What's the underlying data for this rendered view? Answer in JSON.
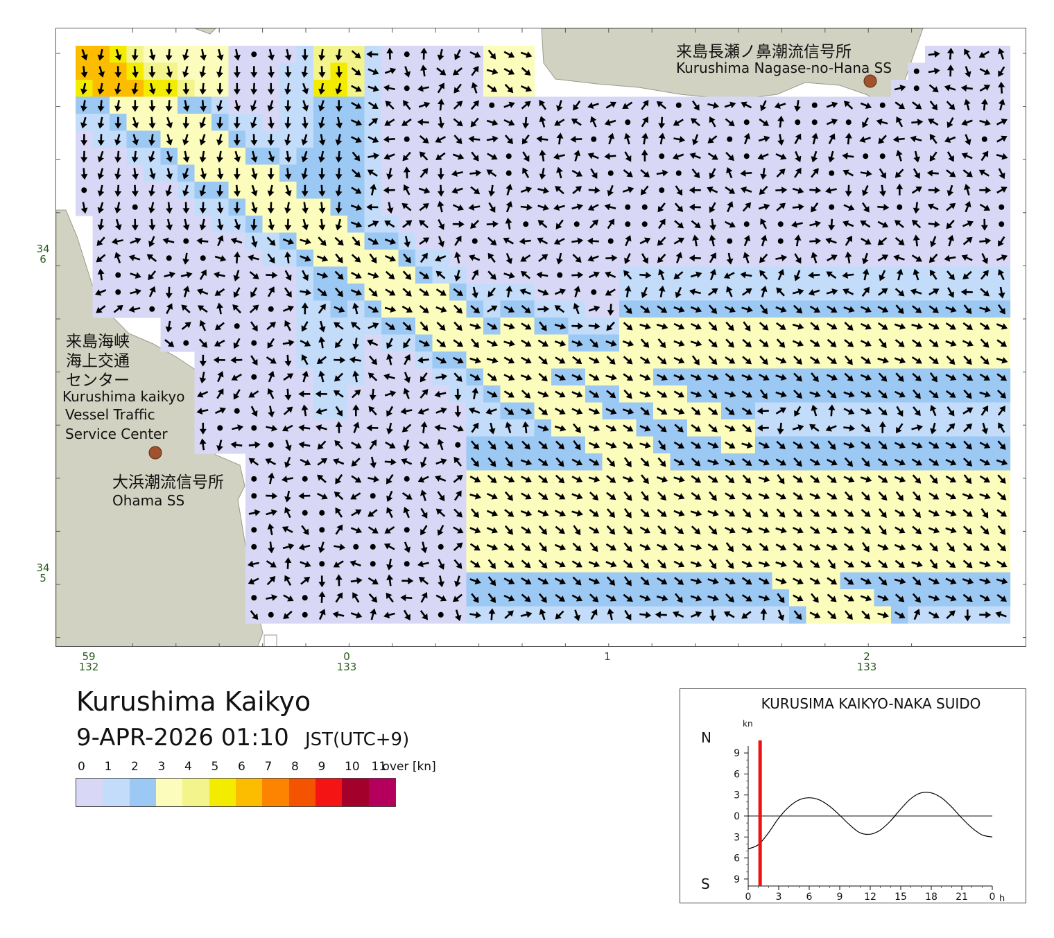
{
  "title": "Kurushima Kaikyo",
  "datetime": "9-APR-2026 01:10",
  "timezone": "JST(UTC+9)",
  "legend": {
    "ticks": [
      "0",
      "1",
      "2",
      "3",
      "4",
      "5",
      "6",
      "7",
      "8",
      "9",
      "10",
      "11"
    ],
    "over_label": "over [kn]",
    "colors": [
      "#d8d8f6",
      "#c2dcfa",
      "#9cc8f4",
      "#fcfcbc",
      "#f4f48c",
      "#f4ec00",
      "#fcbc00",
      "#fc8400",
      "#f45400",
      "#f41414",
      "#a4002c",
      "#b4005c"
    ]
  },
  "places": {
    "nagase_jp": "来島長瀬ノ鼻潮流信号所",
    "nagase_en": "Kurushima Nagase-no-Hana SS",
    "vts_jp_1": "来島海峡",
    "vts_jp_2": "海上交通",
    "vts_jp_3": "センター",
    "vts_en_1": "Kurushima kaikyo",
    "vts_en_2": "Vessel Traffic",
    "vts_en_3": "Service Center",
    "ohama_jp": "大浜潮流信号所",
    "ohama_en": "Ohama SS"
  },
  "coords": {
    "lat_6_deg": "34",
    "lat_6_min": "6",
    "lat_5_deg": "34",
    "lat_5_min": "5",
    "lon_59_min": "59",
    "lon_59_deg": "132",
    "lon_0_min": "0",
    "lon_0_deg": "133",
    "lon_1_min": "1",
    "lon_2_min": "2",
    "lon_2_deg": "133"
  },
  "colors": {
    "land": "#d2d2c2",
    "station": "#a0522d",
    "arrow": "#000000",
    "tide_line": "#000000",
    "time_marker": "#ee1111"
  },
  "tide_chart": {
    "title": "KURUSIMA KAIKYO-NAKA SUIDO",
    "unit": "kn",
    "north_label": "N",
    "south_label": "S",
    "y_tick_labels": [
      "9",
      "6",
      "3",
      "0",
      "3",
      "6",
      "9"
    ],
    "x_tick_labels": [
      "0",
      "3",
      "6",
      "9",
      "12",
      "15",
      "18",
      "21",
      "0"
    ],
    "x_unit": "h",
    "current_hour": 1.17,
    "chart_data": {
      "type": "line",
      "x": [
        0,
        1,
        2,
        3,
        4,
        5,
        6,
        7,
        8,
        9,
        10,
        11,
        12,
        13,
        14,
        15,
        16,
        17,
        18,
        19,
        20,
        21,
        22,
        23,
        24
      ],
      "series": [
        {
          "values": [
            -4.7,
            -4.1,
            -2.4,
            -0.3,
            1.3,
            2.3,
            2.6,
            2.3,
            1.4,
            0.1,
            -1.3,
            -2.4,
            -2.6,
            -2.0,
            -0.7,
            1.0,
            2.5,
            3.3,
            3.3,
            2.6,
            1.3,
            -0.3,
            -1.7,
            -2.7,
            -3.0
          ]
        }
      ],
      "ylim": [
        -10,
        10
      ],
      "xlim": [
        0,
        24
      ]
    }
  }
}
